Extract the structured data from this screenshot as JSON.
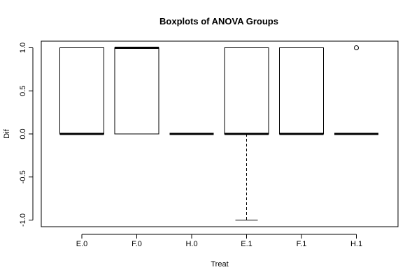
{
  "chart_data": {
    "type": "box",
    "title": "Boxplots of ANOVA Groups",
    "xlabel": "Treat",
    "ylabel": "Dif",
    "ylim": [
      -1.1,
      1.1
    ],
    "yticks": [
      -1.0,
      -0.5,
      0.0,
      0.5,
      1.0
    ],
    "ytick_labels": [
      "-1.0",
      "-0.5",
      "0.0",
      "0.5",
      "1.0"
    ],
    "categories": [
      "E.0",
      "F.0",
      "H.0",
      "E.1",
      "F.1",
      "H.1"
    ],
    "boxes": [
      {
        "label": "E.0",
        "whisker_low": 0,
        "q1": 0,
        "median": 0,
        "q3": 1,
        "whisker_high": 1,
        "outliers": []
      },
      {
        "label": "F.0",
        "whisker_low": 0,
        "q1": 0,
        "median": 1,
        "q3": 1,
        "whisker_high": 1,
        "outliers": []
      },
      {
        "label": "H.0",
        "whisker_low": 0,
        "q1": 0,
        "median": 0,
        "q3": 0,
        "whisker_high": 0,
        "outliers": []
      },
      {
        "label": "E.1",
        "whisker_low": -1,
        "q1": 0,
        "median": 0,
        "q3": 1,
        "whisker_high": 1,
        "outliers": []
      },
      {
        "label": "F.1",
        "whisker_low": 0,
        "q1": 0,
        "median": 0,
        "q3": 1,
        "whisker_high": 1,
        "outliers": []
      },
      {
        "label": "H.1",
        "whisker_low": 0,
        "q1": 0,
        "median": 0,
        "q3": 0,
        "whisker_high": 0,
        "outliers": [
          1
        ]
      }
    ],
    "grid": false,
    "legend": "none",
    "colors": {
      "box_fill": "#ffffff",
      "stroke": "#000000"
    }
  }
}
